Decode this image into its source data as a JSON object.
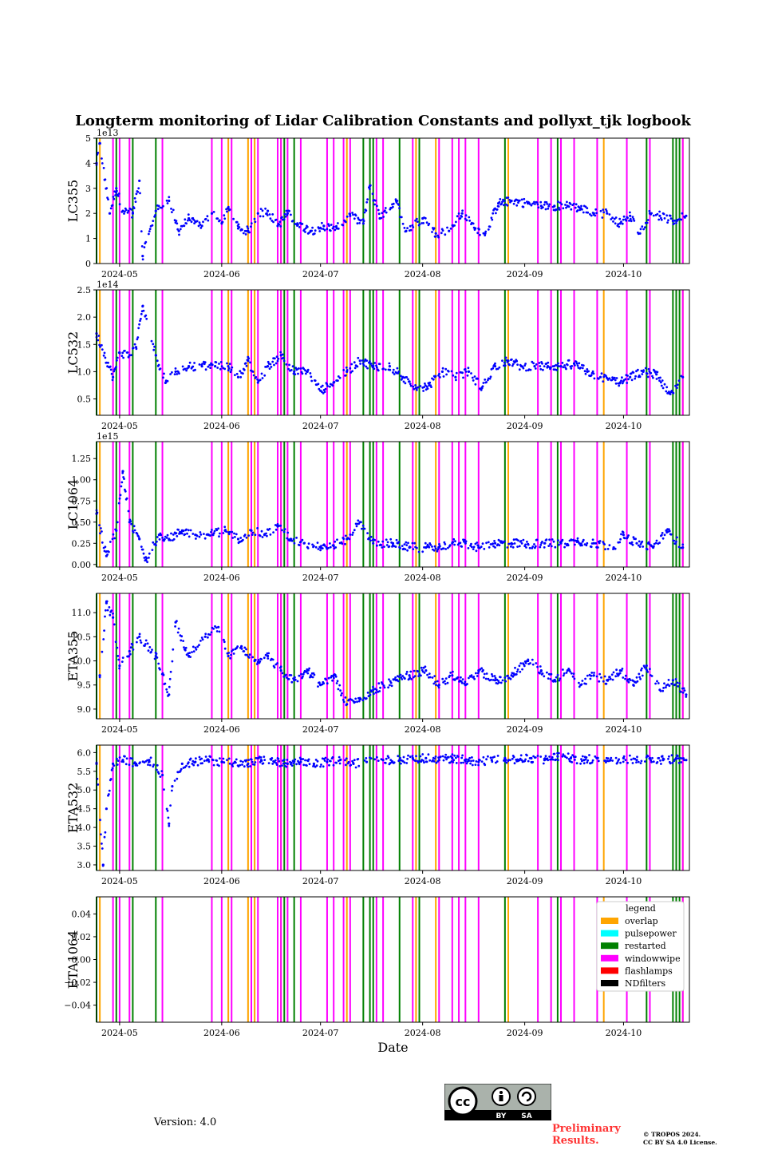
{
  "title": "Longterm monitoring of Lidar Calibration Constants and pollyxt_tjk logbook",
  "xlabel": "Date",
  "version_text": "Version: 4.0",
  "preliminary_text": [
    "Preliminary",
    "Results."
  ],
  "copyright_text": [
    "© TROPOS 2024.",
    "CC BY SA 4.0 License."
  ],
  "license_badge": {
    "left": "BY",
    "right": "SA",
    "icon": "cc-by-sa-icon"
  },
  "x_ticks": [
    "2024-05",
    "2024-06",
    "2024-07",
    "2024-08",
    "2024-09",
    "2024-10"
  ],
  "x_tick_dates": [
    "2024-05-01",
    "2024-06-01",
    "2024-07-01",
    "2024-08-01",
    "2024-09-01",
    "2024-10-01"
  ],
  "x_range": [
    "2024-04-24",
    "2024-10-21"
  ],
  "legend": {
    "title": "legend",
    "entries": [
      {
        "label": "overlap",
        "color": "#ffa500"
      },
      {
        "label": "pulsepower",
        "color": "#00ffff"
      },
      {
        "label": "restarted",
        "color": "#008000"
      },
      {
        "label": "windowwipe",
        "color": "#ff00ff"
      },
      {
        "label": "flashlamps",
        "color": "#ff0000"
      },
      {
        "label": "NDfilters",
        "color": "#000000"
      }
    ]
  },
  "events": {
    "overlap": [
      "2024-04-25",
      "2024-06-03",
      "2024-06-09",
      "2024-06-11",
      "2024-06-19",
      "2024-07-09",
      "2024-07-30",
      "2024-08-05",
      "2024-08-27",
      "2024-09-25",
      "2024-10-19"
    ],
    "restarted": [
      "2024-04-24",
      "2024-04-30",
      "2024-05-05",
      "2024-05-12",
      "2024-06-20",
      "2024-06-23",
      "2024-07-14",
      "2024-07-16",
      "2024-07-17",
      "2024-07-25",
      "2024-07-31",
      "2024-08-26",
      "2024-09-11",
      "2024-10-08",
      "2024-10-16",
      "2024-10-17",
      "2024-10-18"
    ],
    "windowwipe": [
      "2024-04-29",
      "2024-05-01",
      "2024-05-04",
      "2024-05-14",
      "2024-05-29",
      "2024-06-01",
      "2024-06-04",
      "2024-06-10",
      "2024-06-12",
      "2024-06-18",
      "2024-06-19",
      "2024-06-21",
      "2024-06-25",
      "2024-07-03",
      "2024-07-05",
      "2024-07-08",
      "2024-07-10",
      "2024-07-18",
      "2024-07-20",
      "2024-07-29",
      "2024-08-06",
      "2024-08-10",
      "2024-08-12",
      "2024-08-14",
      "2024-08-18",
      "2024-09-05",
      "2024-09-09",
      "2024-09-12",
      "2024-09-16",
      "2024-09-23",
      "2024-10-02",
      "2024-10-09",
      "2024-10-19"
    ]
  },
  "chart_data": [
    {
      "type": "scatter",
      "ylabel": "LC355",
      "multiplier": "1e13",
      "ylim": [
        0,
        5
      ],
      "yticks": [
        0,
        1,
        2,
        3,
        4,
        5
      ],
      "ytick_labels": [
        "0",
        "1",
        "2",
        "3",
        "4",
        "5"
      ],
      "points": [
        [
          "2024-04-24",
          4.0
        ],
        [
          "2024-04-25",
          4.8
        ],
        [
          "2024-04-28",
          2.0
        ],
        [
          "2024-04-30",
          3.0
        ],
        [
          "2024-05-02",
          2.1
        ],
        [
          "2024-05-05",
          2.0
        ],
        [
          "2024-05-07",
          3.3
        ],
        [
          "2024-05-08",
          0.3
        ],
        [
          "2024-05-12",
          2.1
        ],
        [
          "2024-05-16",
          2.5
        ],
        [
          "2024-05-19",
          1.3
        ],
        [
          "2024-05-22",
          1.8
        ],
        [
          "2024-05-26",
          1.5
        ],
        [
          "2024-05-29",
          2.0
        ],
        [
          "2024-06-01",
          1.6
        ],
        [
          "2024-06-03",
          2.2
        ],
        [
          "2024-06-06",
          1.4
        ],
        [
          "2024-06-09",
          1.3
        ],
        [
          "2024-06-12",
          2.0
        ],
        [
          "2024-06-15",
          2.1
        ],
        [
          "2024-06-18",
          1.5
        ],
        [
          "2024-06-21",
          2.0
        ],
        [
          "2024-06-24",
          1.6
        ],
        [
          "2024-06-28",
          1.3
        ],
        [
          "2024-07-02",
          1.5
        ],
        [
          "2024-07-06",
          1.4
        ],
        [
          "2024-07-10",
          1.9
        ],
        [
          "2024-07-14",
          1.6
        ],
        [
          "2024-07-16",
          3.1
        ],
        [
          "2024-07-19",
          1.8
        ],
        [
          "2024-07-24",
          2.5
        ],
        [
          "2024-07-27",
          1.3
        ],
        [
          "2024-08-01",
          1.8
        ],
        [
          "2024-08-05",
          1.2
        ],
        [
          "2024-08-09",
          1.3
        ],
        [
          "2024-08-13",
          2.0
        ],
        [
          "2024-08-17",
          1.4
        ],
        [
          "2024-08-20",
          1.2
        ],
        [
          "2024-08-24",
          2.4
        ],
        [
          "2024-08-28",
          2.5
        ],
        [
          "2024-09-02",
          2.4
        ],
        [
          "2024-09-06",
          2.3
        ],
        [
          "2024-09-10",
          2.3
        ],
        [
          "2024-09-14",
          2.3
        ],
        [
          "2024-09-18",
          2.2
        ],
        [
          "2024-09-22",
          2.0
        ],
        [
          "2024-09-26",
          2.0
        ],
        [
          "2024-09-30",
          1.6
        ],
        [
          "2024-10-03",
          1.9
        ],
        [
          "2024-10-06",
          1.2
        ],
        [
          "2024-10-09",
          2.0
        ],
        [
          "2024-10-12",
          1.9
        ],
        [
          "2024-10-16",
          1.7
        ],
        [
          "2024-10-20",
          1.9
        ]
      ]
    },
    {
      "type": "scatter",
      "ylabel": "LC532",
      "multiplier": "1e14",
      "ylim": [
        0.2,
        2.5
      ],
      "yticks": [
        0.5,
        1.0,
        1.5,
        2.0,
        2.5
      ],
      "ytick_labels": [
        "0.5",
        "1.0",
        "1.5",
        "2.0",
        "2.5"
      ],
      "points": [
        [
          "2024-04-24",
          1.7
        ],
        [
          "2024-04-29",
          0.9
        ],
        [
          "2024-05-01",
          1.35
        ],
        [
          "2024-05-04",
          1.3
        ],
        [
          "2024-05-06",
          1.45
        ],
        [
          "2024-05-08",
          2.2
        ],
        [
          "2024-05-12",
          1.3
        ],
        [
          "2024-05-15",
          0.8
        ],
        [
          "2024-05-18",
          1.0
        ],
        [
          "2024-05-22",
          1.1
        ],
        [
          "2024-05-26",
          1.1
        ],
        [
          "2024-05-30",
          1.1
        ],
        [
          "2024-06-03",
          1.1
        ],
        [
          "2024-06-06",
          0.9
        ],
        [
          "2024-06-09",
          1.2
        ],
        [
          "2024-06-12",
          0.8
        ],
        [
          "2024-06-15",
          1.1
        ],
        [
          "2024-06-19",
          1.3
        ],
        [
          "2024-06-23",
          1.0
        ],
        [
          "2024-06-27",
          1.0
        ],
        [
          "2024-07-01",
          0.65
        ],
        [
          "2024-07-05",
          0.8
        ],
        [
          "2024-07-09",
          1.0
        ],
        [
          "2024-07-13",
          1.2
        ],
        [
          "2024-07-17",
          1.1
        ],
        [
          "2024-07-22",
          1.1
        ],
        [
          "2024-07-26",
          0.9
        ],
        [
          "2024-07-30",
          0.7
        ],
        [
          "2024-08-03",
          0.75
        ],
        [
          "2024-08-07",
          1.0
        ],
        [
          "2024-08-11",
          0.9
        ],
        [
          "2024-08-15",
          1.0
        ],
        [
          "2024-08-19",
          0.7
        ],
        [
          "2024-08-23",
          1.1
        ],
        [
          "2024-08-27",
          1.2
        ],
        [
          "2024-08-31",
          1.1
        ],
        [
          "2024-09-04",
          1.1
        ],
        [
          "2024-09-08",
          1.1
        ],
        [
          "2024-09-12",
          1.1
        ],
        [
          "2024-09-16",
          1.15
        ],
        [
          "2024-09-20",
          1.0
        ],
        [
          "2024-09-24",
          0.9
        ],
        [
          "2024-09-30",
          0.8
        ],
        [
          "2024-10-03",
          0.9
        ],
        [
          "2024-10-07",
          1.0
        ],
        [
          "2024-10-11",
          0.95
        ],
        [
          "2024-10-15",
          0.6
        ],
        [
          "2024-10-19",
          0.9
        ]
      ]
    },
    {
      "type": "scatter",
      "ylabel": "LC1064",
      "multiplier": "1e15",
      "ylim": [
        -0.03,
        1.45
      ],
      "yticks": [
        0.0,
        0.25,
        0.5,
        0.75,
        1.0,
        1.25
      ],
      "ytick_labels": [
        "0.00",
        "0.25",
        "0.50",
        "0.75",
        "1.00",
        "1.25"
      ],
      "points": [
        [
          "2024-04-24",
          0.6
        ],
        [
          "2024-04-27",
          0.1
        ],
        [
          "2024-04-30",
          0.4
        ],
        [
          "2024-05-02",
          1.1
        ],
        [
          "2024-05-04",
          0.5
        ],
        [
          "2024-05-07",
          0.3
        ],
        [
          "2024-05-09",
          0.05
        ],
        [
          "2024-05-13",
          0.35
        ],
        [
          "2024-05-16",
          0.3
        ],
        [
          "2024-05-20",
          0.4
        ],
        [
          "2024-05-24",
          0.35
        ],
        [
          "2024-05-28",
          0.35
        ],
        [
          "2024-06-02",
          0.4
        ],
        [
          "2024-06-06",
          0.3
        ],
        [
          "2024-06-10",
          0.4
        ],
        [
          "2024-06-14",
          0.35
        ],
        [
          "2024-06-18",
          0.45
        ],
        [
          "2024-06-22",
          0.3
        ],
        [
          "2024-06-26",
          0.25
        ],
        [
          "2024-07-01",
          0.2
        ],
        [
          "2024-07-05",
          0.22
        ],
        [
          "2024-07-09",
          0.3
        ],
        [
          "2024-07-13",
          0.5
        ],
        [
          "2024-07-17",
          0.25
        ],
        [
          "2024-07-23",
          0.25
        ],
        [
          "2024-07-28",
          0.2
        ],
        [
          "2024-08-02",
          0.2
        ],
        [
          "2024-08-06",
          0.2
        ],
        [
          "2024-08-10",
          0.25
        ],
        [
          "2024-08-14",
          0.25
        ],
        [
          "2024-08-18",
          0.2
        ],
        [
          "2024-08-23",
          0.25
        ],
        [
          "2024-08-28",
          0.25
        ],
        [
          "2024-09-02",
          0.24
        ],
        [
          "2024-09-07",
          0.25
        ],
        [
          "2024-09-12",
          0.25
        ],
        [
          "2024-09-17",
          0.28
        ],
        [
          "2024-09-22",
          0.25
        ],
        [
          "2024-09-28",
          0.2
        ],
        [
          "2024-10-01",
          0.35
        ],
        [
          "2024-10-05",
          0.25
        ],
        [
          "2024-10-10",
          0.2
        ],
        [
          "2024-10-14",
          0.4
        ],
        [
          "2024-10-19",
          0.2
        ]
      ]
    },
    {
      "type": "scatter",
      "ylabel": "ETA355",
      "multiplier": "",
      "ylim": [
        8.8,
        11.4
      ],
      "yticks": [
        9.0,
        9.5,
        10.0,
        10.5,
        11.0
      ],
      "ytick_labels": [
        "9.0",
        "9.5",
        "10.0",
        "10.5",
        "11.0"
      ],
      "points": [
        [
          "2024-04-25",
          9.7
        ],
        [
          "2024-04-27",
          11.2
        ],
        [
          "2024-04-29",
          10.9
        ],
        [
          "2024-05-01",
          9.9
        ],
        [
          "2024-05-04",
          10.2
        ],
        [
          "2024-05-07",
          10.5
        ],
        [
          "2024-05-12",
          10.1
        ],
        [
          "2024-05-16",
          9.3
        ],
        [
          "2024-05-18",
          10.8
        ],
        [
          "2024-05-22",
          10.1
        ],
        [
          "2024-05-27",
          10.5
        ],
        [
          "2024-05-31",
          10.7
        ],
        [
          "2024-06-03",
          10.1
        ],
        [
          "2024-06-07",
          10.3
        ],
        [
          "2024-06-11",
          10.0
        ],
        [
          "2024-06-15",
          10.1
        ],
        [
          "2024-06-19",
          9.8
        ],
        [
          "2024-06-23",
          9.6
        ],
        [
          "2024-06-27",
          9.8
        ],
        [
          "2024-07-01",
          9.5
        ],
        [
          "2024-07-05",
          9.7
        ],
        [
          "2024-07-09",
          9.1
        ],
        [
          "2024-07-13",
          9.2
        ],
        [
          "2024-07-17",
          9.4
        ],
        [
          "2024-07-24",
          9.6
        ],
        [
          "2024-07-28",
          9.7
        ],
        [
          "2024-08-02",
          9.8
        ],
        [
          "2024-08-06",
          9.5
        ],
        [
          "2024-08-10",
          9.7
        ],
        [
          "2024-08-14",
          9.5
        ],
        [
          "2024-08-18",
          9.8
        ],
        [
          "2024-08-23",
          9.6
        ],
        [
          "2024-08-28",
          9.7
        ],
        [
          "2024-09-02",
          10.0
        ],
        [
          "2024-09-06",
          9.8
        ],
        [
          "2024-09-10",
          9.6
        ],
        [
          "2024-09-14",
          9.8
        ],
        [
          "2024-09-18",
          9.5
        ],
        [
          "2024-09-22",
          9.7
        ],
        [
          "2024-09-26",
          9.6
        ],
        [
          "2024-09-30",
          9.8
        ],
        [
          "2024-10-04",
          9.5
        ],
        [
          "2024-10-08",
          9.9
        ],
        [
          "2024-10-12",
          9.4
        ],
        [
          "2024-10-16",
          9.6
        ],
        [
          "2024-10-20",
          9.3
        ]
      ]
    },
    {
      "type": "scatter",
      "ylabel": "ETA532",
      "multiplier": "",
      "ylim": [
        2.85,
        6.2
      ],
      "yticks": [
        3.0,
        3.5,
        4.0,
        4.5,
        5.0,
        5.5,
        6.0
      ],
      "ytick_labels": [
        "3.0",
        "3.5",
        "4.0",
        "4.5",
        "5.0",
        "5.5",
        "6.0"
      ],
      "points": [
        [
          "2024-04-24",
          5.7
        ],
        [
          "2024-04-26",
          3.0
        ],
        [
          "2024-04-27",
          4.5
        ],
        [
          "2024-04-29",
          5.7
        ],
        [
          "2024-05-02",
          5.8
        ],
        [
          "2024-05-06",
          5.7
        ],
        [
          "2024-05-10",
          5.8
        ],
        [
          "2024-05-14",
          5.4
        ],
        [
          "2024-05-16",
          4.1
        ],
        [
          "2024-05-17",
          5.1
        ],
        [
          "2024-05-20",
          5.7
        ],
        [
          "2024-05-24",
          5.75
        ],
        [
          "2024-05-28",
          5.8
        ],
        [
          "2024-06-01",
          5.75
        ],
        [
          "2024-06-05",
          5.75
        ],
        [
          "2024-06-09",
          5.7
        ],
        [
          "2024-06-13",
          5.8
        ],
        [
          "2024-06-17",
          5.75
        ],
        [
          "2024-06-21",
          5.7
        ],
        [
          "2024-06-25",
          5.75
        ],
        [
          "2024-06-29",
          5.7
        ],
        [
          "2024-07-03",
          5.75
        ],
        [
          "2024-07-07",
          5.8
        ],
        [
          "2024-07-11",
          5.7
        ],
        [
          "2024-07-15",
          5.75
        ],
        [
          "2024-07-20",
          5.8
        ],
        [
          "2024-07-25",
          5.8
        ],
        [
          "2024-07-29",
          5.85
        ],
        [
          "2024-08-02",
          5.85
        ],
        [
          "2024-08-06",
          5.8
        ],
        [
          "2024-08-10",
          5.85
        ],
        [
          "2024-08-14",
          5.8
        ],
        [
          "2024-08-18",
          5.75
        ],
        [
          "2024-08-22",
          5.8
        ],
        [
          "2024-08-26",
          5.85
        ],
        [
          "2024-08-30",
          5.8
        ],
        [
          "2024-09-03",
          5.85
        ],
        [
          "2024-09-07",
          5.8
        ],
        [
          "2024-09-11",
          5.9
        ],
        [
          "2024-09-15",
          5.85
        ],
        [
          "2024-09-19",
          5.8
        ],
        [
          "2024-09-23",
          5.85
        ],
        [
          "2024-09-27",
          5.8
        ],
        [
          "2024-10-01",
          5.85
        ],
        [
          "2024-10-05",
          5.8
        ],
        [
          "2024-10-09",
          5.85
        ],
        [
          "2024-10-13",
          5.8
        ],
        [
          "2024-10-17",
          5.85
        ],
        [
          "2024-10-20",
          5.8
        ]
      ]
    },
    {
      "type": "scatter",
      "ylabel": "ETA1064",
      "multiplier": "",
      "ylim": [
        -0.055,
        0.055
      ],
      "yticks": [
        -0.04,
        -0.02,
        0.0,
        0.02,
        0.04
      ],
      "ytick_labels": [
        "−0.04",
        "−0.02",
        "0.00",
        "0.02",
        "0.04"
      ],
      "points": []
    }
  ]
}
